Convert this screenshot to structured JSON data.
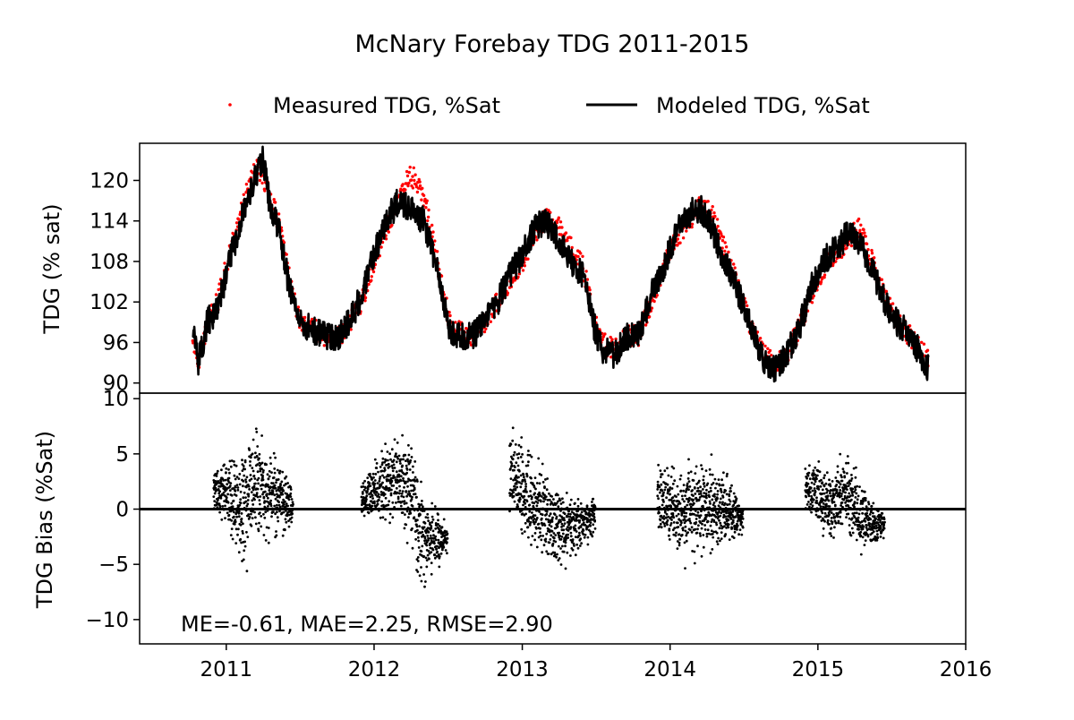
{
  "title": "McNary Forebay TDG 2011-2015",
  "legend": {
    "placement": "top-center, above plots",
    "items": [
      {
        "label": "Measured TDG, %Sat",
        "color": "#ff0000",
        "marker": "dot"
      },
      {
        "label": "Modeled TDG, %Sat",
        "color": "#000000",
        "marker": "line"
      }
    ]
  },
  "chart_data": [
    {
      "type": "line",
      "panel": "top",
      "ylabel": "TDG (% sat)",
      "xlim": [
        "2010-06-01",
        "2016-01-01"
      ],
      "ylim": [
        88.5,
        125.5
      ],
      "yticks": [
        90,
        96,
        102,
        108,
        114,
        120
      ],
      "grid": false,
      "series": [
        {
          "name": "Measured TDG, %Sat",
          "style": "dots",
          "color": "#ff0000",
          "points": [
            [
              "2010-10-10",
              97.5
            ],
            [
              "2010-10-25",
              93
            ],
            [
              "2010-11-15",
              99
            ],
            [
              "2010-12-10",
              102
            ],
            [
              "2011-01-05",
              108
            ],
            [
              "2011-02-01",
              114
            ],
            [
              "2011-02-20",
              118
            ],
            [
              "2011-03-15",
              122
            ],
            [
              "2011-04-01",
              121
            ],
            [
              "2011-04-20",
              117
            ],
            [
              "2011-05-10",
              114
            ],
            [
              "2011-05-25",
              110
            ],
            [
              "2011-06-10",
              104
            ],
            [
              "2011-07-01",
              99
            ],
            [
              "2011-08-01",
              98
            ],
            [
              "2011-09-01",
              97
            ],
            [
              "2011-10-01",
              96.5
            ],
            [
              "2011-11-01",
              99
            ],
            [
              "2011-12-01",
              102
            ],
            [
              "2012-01-01",
              108
            ],
            [
              "2012-02-01",
              113
            ],
            [
              "2012-03-01",
              117
            ],
            [
              "2012-04-01",
              121
            ],
            [
              "2012-05-01",
              118
            ],
            [
              "2012-06-01",
              110
            ],
            [
              "2012-06-20",
              103
            ],
            [
              "2012-07-10",
              98
            ],
            [
              "2012-08-01",
              97.5
            ],
            [
              "2012-09-01",
              97
            ],
            [
              "2012-10-01",
              99
            ],
            [
              "2012-11-01",
              102
            ],
            [
              "2012-12-01",
              105
            ],
            [
              "2013-01-01",
              108
            ],
            [
              "2013-02-01",
              112
            ],
            [
              "2013-03-01",
              114.5
            ],
            [
              "2013-04-01",
              113
            ],
            [
              "2013-05-01",
              110
            ],
            [
              "2013-06-01",
              107
            ],
            [
              "2013-06-25",
              100
            ],
            [
              "2013-07-15",
              96
            ],
            [
              "2013-08-15",
              95
            ],
            [
              "2013-09-15",
              97
            ],
            [
              "2013-10-15",
              97
            ],
            [
              "2013-11-15",
              102
            ],
            [
              "2013-12-15",
              107
            ],
            [
              "2014-01-15",
              111
            ],
            [
              "2014-02-15",
              114
            ],
            [
              "2014-03-15",
              116
            ],
            [
              "2014-04-15",
              115
            ],
            [
              "2014-05-15",
              110
            ],
            [
              "2014-06-15",
              105
            ],
            [
              "2014-07-15",
              99
            ],
            [
              "2014-08-15",
              95
            ],
            [
              "2014-09-15",
              93
            ],
            [
              "2014-10-15",
              94
            ],
            [
              "2014-11-15",
              98
            ],
            [
              "2014-12-15",
              103
            ],
            [
              "2015-01-15",
              107
            ],
            [
              "2015-02-15",
              109
            ],
            [
              "2015-03-15",
              111
            ],
            [
              "2015-04-15",
              113
            ],
            [
              "2015-05-15",
              108
            ],
            [
              "2015-06-15",
              103
            ],
            [
              "2015-07-15",
              99
            ],
            [
              "2015-08-15",
              97
            ],
            [
              "2015-09-15",
              95
            ],
            [
              "2015-10-01",
              93
            ]
          ]
        },
        {
          "name": "Modeled TDG, %Sat",
          "style": "line",
          "color": "#000000",
          "points": [
            [
              "2010-10-10",
              98
            ],
            [
              "2010-10-25",
              93
            ],
            [
              "2010-11-15",
              99
            ],
            [
              "2010-12-10",
              101
            ],
            [
              "2011-01-05",
              107
            ],
            [
              "2011-02-01",
              113
            ],
            [
              "2011-02-20",
              117
            ],
            [
              "2011-03-15",
              121
            ],
            [
              "2011-04-01",
              123
            ],
            [
              "2011-04-20",
              116
            ],
            [
              "2011-05-10",
              113
            ],
            [
              "2011-05-25",
              108
            ],
            [
              "2011-06-10",
              103
            ],
            [
              "2011-07-01",
              99
            ],
            [
              "2011-08-01",
              98
            ],
            [
              "2011-09-01",
              97
            ],
            [
              "2011-10-01",
              96.5
            ],
            [
              "2011-11-01",
              99
            ],
            [
              "2011-12-01",
              103
            ],
            [
              "2012-01-01",
              109
            ],
            [
              "2012-02-01",
              114
            ],
            [
              "2012-03-01",
              117
            ],
            [
              "2012-04-01",
              116
            ],
            [
              "2012-05-01",
              114
            ],
            [
              "2012-06-01",
              108
            ],
            [
              "2012-06-20",
              102
            ],
            [
              "2012-07-10",
              97
            ],
            [
              "2012-08-01",
              97
            ],
            [
              "2012-09-01",
              97
            ],
            [
              "2012-10-01",
              99
            ],
            [
              "2012-11-01",
              102
            ],
            [
              "2012-12-01",
              106
            ],
            [
              "2013-01-01",
              109
            ],
            [
              "2013-02-01",
              113
            ],
            [
              "2013-03-01",
              114
            ],
            [
              "2013-04-01",
              111
            ],
            [
              "2013-05-01",
              108
            ],
            [
              "2013-06-01",
              106
            ],
            [
              "2013-06-25",
              99
            ],
            [
              "2013-07-15",
              95
            ],
            [
              "2013-08-15",
              94
            ],
            [
              "2013-09-15",
              97
            ],
            [
              "2013-10-15",
              97
            ],
            [
              "2013-11-15",
              103
            ],
            [
              "2013-12-15",
              107
            ],
            [
              "2014-01-15",
              112
            ],
            [
              "2014-02-15",
              115
            ],
            [
              "2014-03-15",
              116
            ],
            [
              "2014-04-15",
              113
            ],
            [
              "2014-05-15",
              108
            ],
            [
              "2014-06-15",
              104
            ],
            [
              "2014-07-15",
              99
            ],
            [
              "2014-08-15",
              94
            ],
            [
              "2014-09-15",
              92
            ],
            [
              "2014-10-15",
              94
            ],
            [
              "2014-11-15",
              98
            ],
            [
              "2014-12-15",
              104
            ],
            [
              "2015-01-15",
              108
            ],
            [
              "2015-02-15",
              110
            ],
            [
              "2015-03-15",
              112
            ],
            [
              "2015-04-15",
              111
            ],
            [
              "2015-05-15",
              107
            ],
            [
              "2015-06-15",
              102
            ],
            [
              "2015-07-15",
              99
            ],
            [
              "2015-08-15",
              97
            ],
            [
              "2015-09-15",
              94
            ],
            [
              "2015-10-01",
              92
            ]
          ]
        }
      ]
    },
    {
      "type": "scatter",
      "panel": "bottom",
      "ylabel": "TDG Bias (%Sat)",
      "xlim": [
        "2010-06-01",
        "2016-01-01"
      ],
      "ylim": [
        -12.2,
        10.5
      ],
      "yticks": [
        -10,
        -5,
        0,
        5,
        10
      ],
      "ytick_labels": [
        "−10",
        "−5",
        "0",
        "5",
        "10"
      ],
      "xticks": [
        "2011",
        "2012",
        "2013",
        "2014",
        "2015",
        "2016"
      ],
      "reference_line": 0,
      "grid": false,
      "annotation": "ME=-0.61, MAE=2.25, RMSE=2.90",
      "bias_windows": [
        {
          "start": "2010-12-01",
          "end": "2011-06-15",
          "envelope": [
            [
              0,
              -1,
              4
            ],
            [
              0.2,
              -3,
              6
            ],
            [
              0.35,
              -8,
              7
            ],
            [
              0.5,
              -4,
              9
            ],
            [
              0.7,
              -4,
              7
            ],
            [
              1,
              -3,
              3
            ]
          ]
        },
        {
          "start": "2011-12-01",
          "end": "2012-07-01",
          "envelope": [
            [
              0,
              -1,
              3
            ],
            [
              0.3,
              -2,
              7
            ],
            [
              0.5,
              -4,
              9.5
            ],
            [
              0.65,
              -9,
              6
            ],
            [
              0.8,
              -7,
              1
            ],
            [
              1,
              -4,
              -1
            ]
          ]
        },
        {
          "start": "2012-12-01",
          "end": "2013-07-01",
          "envelope": [
            [
              0,
              -2,
              9
            ],
            [
              0.25,
              -4,
              6
            ],
            [
              0.5,
              -7,
              4
            ],
            [
              0.75,
              -5,
              2
            ],
            [
              1,
              -3,
              2
            ]
          ]
        },
        {
          "start": "2013-12-01",
          "end": "2014-07-01",
          "envelope": [
            [
              0,
              -3,
              5
            ],
            [
              0.3,
              -6,
              5
            ],
            [
              0.6,
              -5,
              6
            ],
            [
              0.8,
              -4,
              4
            ],
            [
              1,
              -3,
              1
            ]
          ]
        },
        {
          "start": "2014-12-01",
          "end": "2015-06-15",
          "envelope": [
            [
              0,
              -1,
              5
            ],
            [
              0.3,
              -4,
              5
            ],
            [
              0.5,
              -3,
              6
            ],
            [
              0.75,
              -5,
              3
            ],
            [
              1,
              -3,
              0
            ]
          ]
        }
      ]
    }
  ]
}
